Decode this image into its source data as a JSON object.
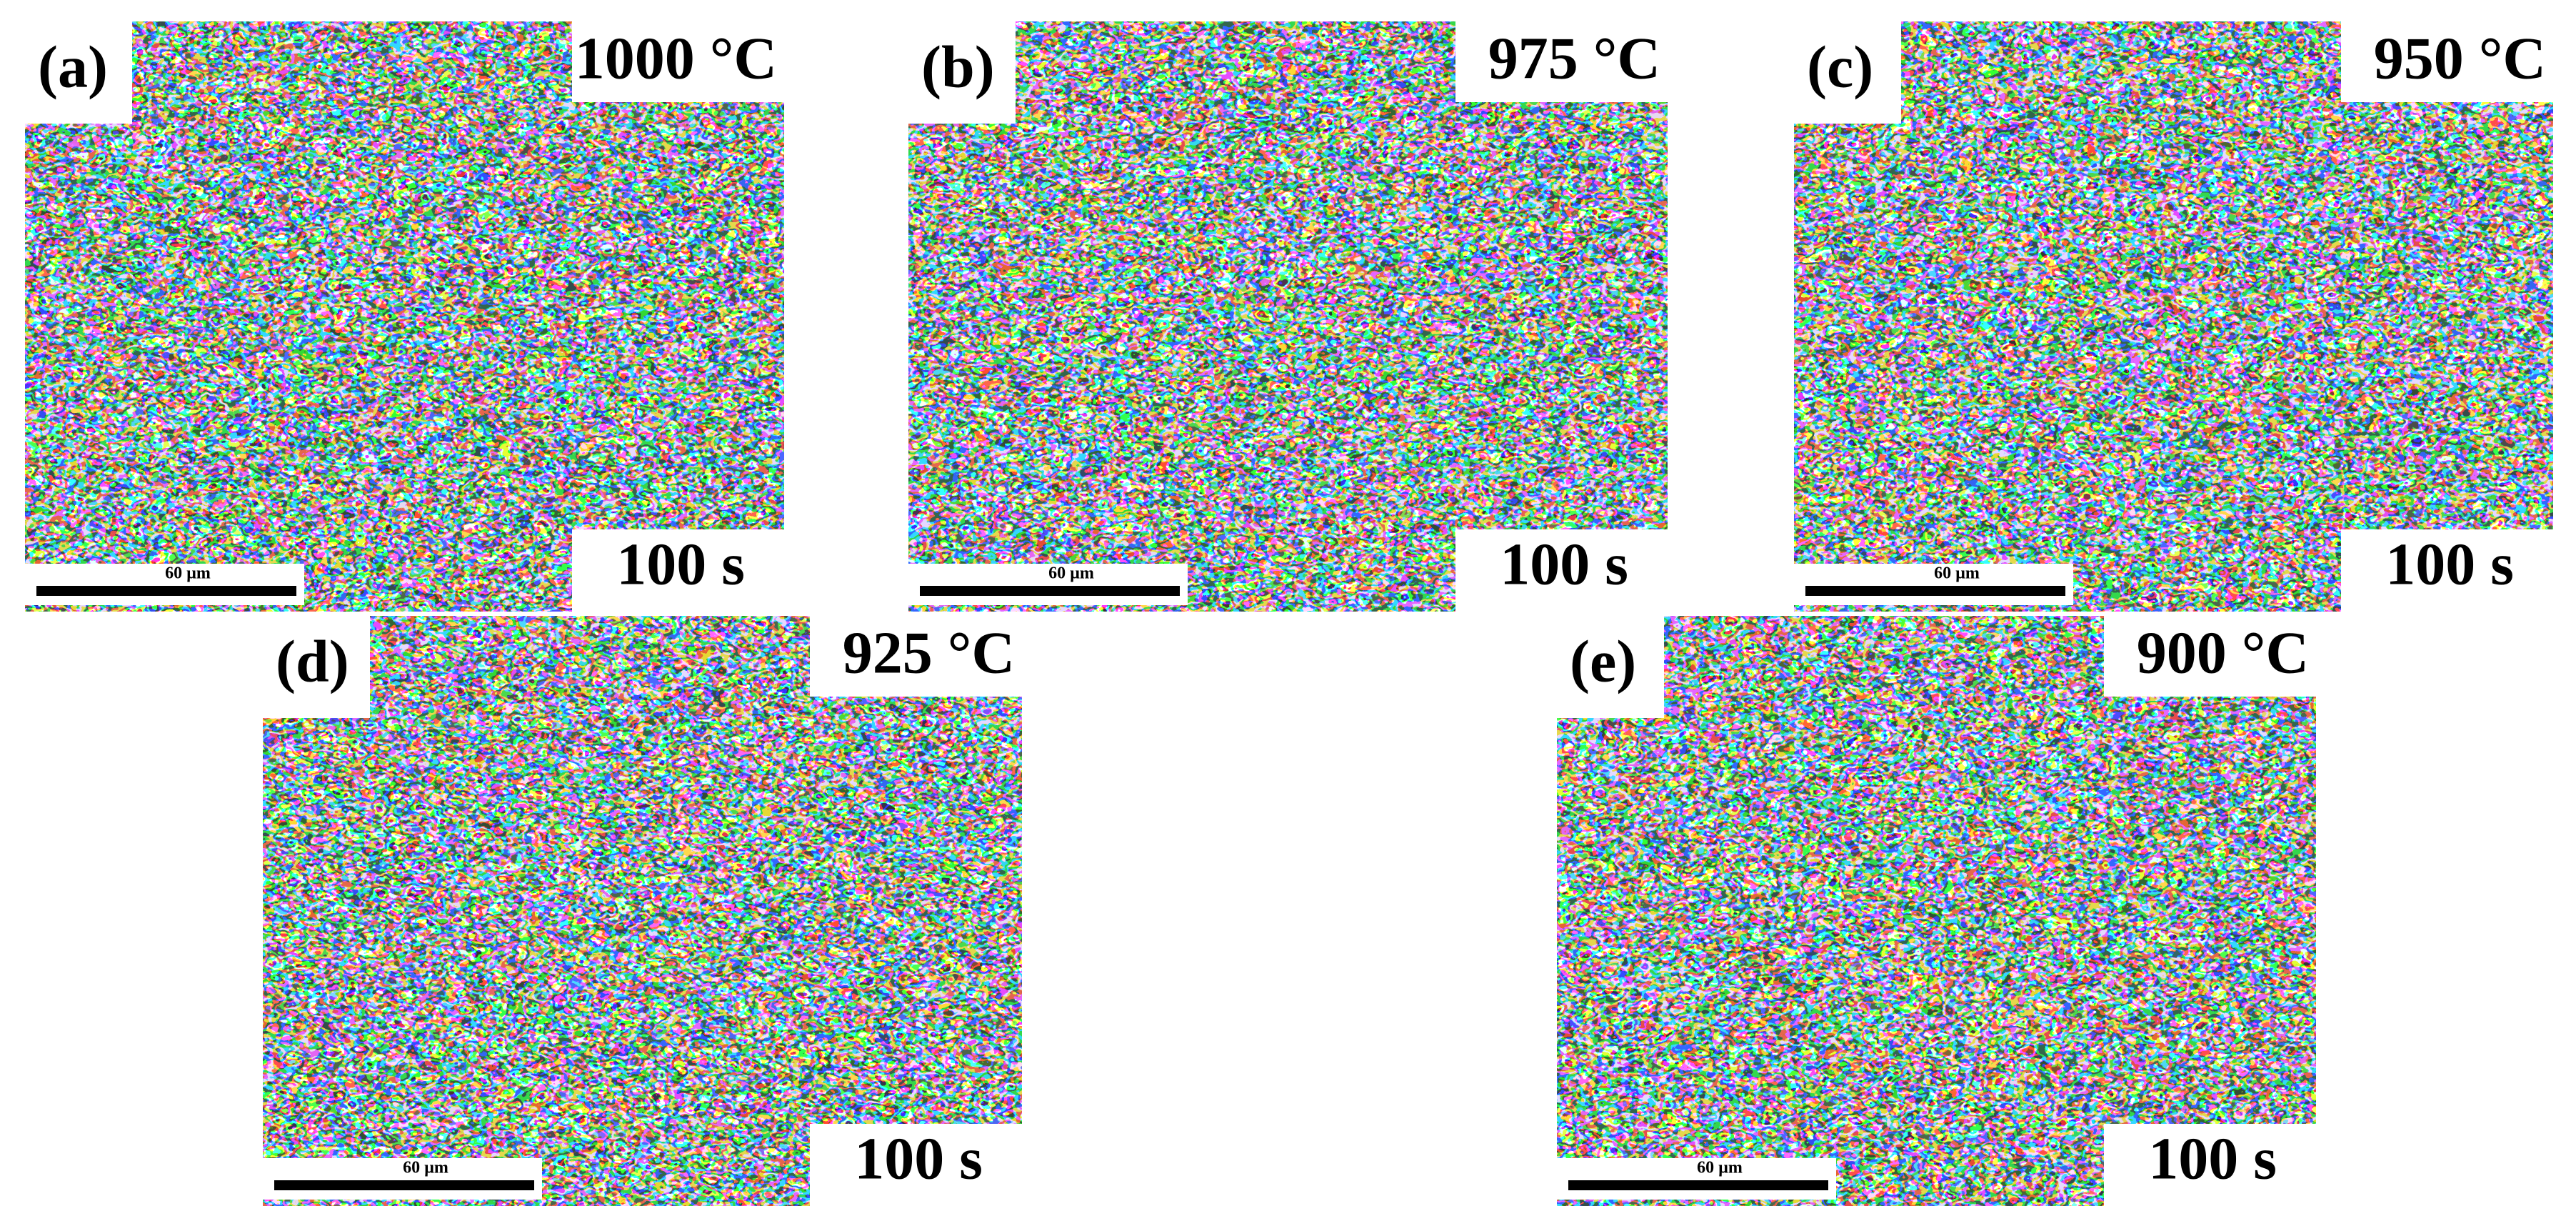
{
  "panels": [
    {
      "label": "(a)",
      "temperature": "1000 °C",
      "time": "100 s",
      "scale_bar": "60 µm"
    },
    {
      "label": "(b)",
      "temperature": "975 °C",
      "time": "100 s",
      "scale_bar": "60 µm"
    },
    {
      "label": "(c)",
      "temperature": "950 °C",
      "time": "100 s",
      "scale_bar": "60 µm"
    },
    {
      "label": "(d)",
      "temperature": "925 °C",
      "time": "100 s",
      "scale_bar": "60 µm"
    },
    {
      "label": "(e)",
      "temperature": "900 °C",
      "time": "100 s",
      "scale_bar": "60 µm"
    }
  ]
}
